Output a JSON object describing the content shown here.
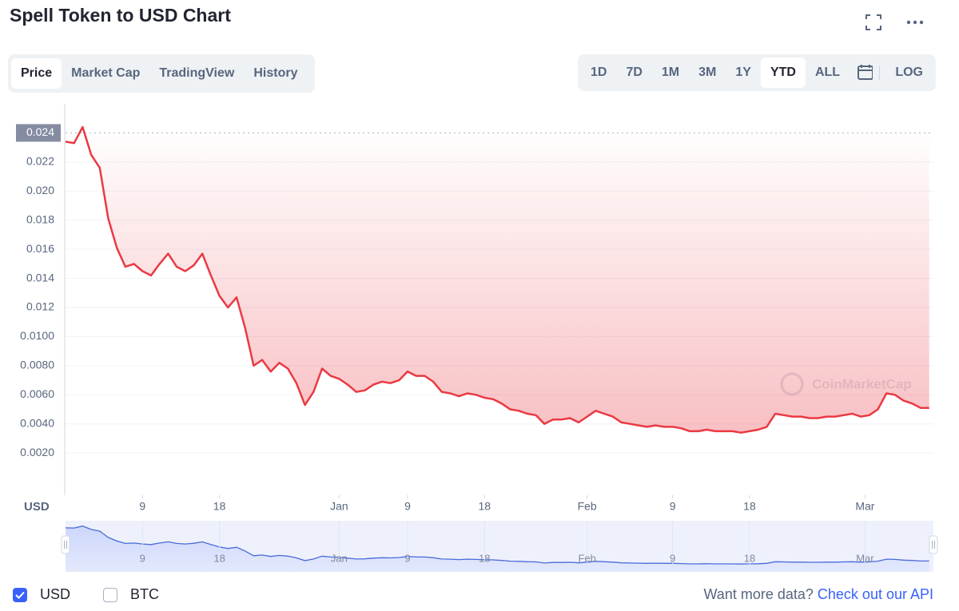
{
  "header": {
    "title": "Spell Token to USD Chart"
  },
  "tabs": [
    {
      "label": "Price",
      "active": true
    },
    {
      "label": "Market Cap",
      "active": false
    },
    {
      "label": "TradingView",
      "active": false
    },
    {
      "label": "History",
      "active": false
    }
  ],
  "ranges": [
    {
      "label": "1D",
      "active": false
    },
    {
      "label": "7D",
      "active": false
    },
    {
      "label": "1M",
      "active": false
    },
    {
      "label": "3M",
      "active": false
    },
    {
      "label": "1Y",
      "active": false
    },
    {
      "label": "YTD",
      "active": true
    },
    {
      "label": "ALL",
      "active": false
    }
  ],
  "scale_toggle": "LOG",
  "chart_data": {
    "type": "line",
    "y_label": "USD",
    "watermark": "CoinMarketCap",
    "x": [
      0,
      1,
      2,
      3,
      4,
      5,
      6,
      7,
      8,
      9,
      10,
      11,
      12,
      13,
      14,
      15,
      16,
      17,
      18,
      19,
      20,
      21,
      22,
      23,
      24,
      25,
      26,
      27,
      28,
      29,
      30,
      31,
      32,
      33,
      34,
      35,
      36,
      37,
      38,
      39,
      40,
      41,
      42,
      43,
      44,
      45,
      46,
      47,
      48,
      49,
      50,
      51,
      52,
      53,
      54,
      55,
      56,
      57,
      58,
      59,
      60,
      61,
      62,
      63,
      64,
      65,
      66,
      67,
      68,
      69,
      70,
      71,
      72,
      73,
      74,
      75,
      76,
      77,
      78,
      79,
      80,
      81,
      82,
      83,
      84,
      85,
      86,
      87,
      88,
      89,
      90,
      91,
      92,
      93,
      94,
      95,
      96,
      97,
      98,
      99,
      100,
      101
    ],
    "series": [
      {
        "color": "#ea3943",
        "values": [
          0.0234,
          0.0233,
          0.0244,
          0.0225,
          0.0216,
          0.0181,
          0.0161,
          0.0148,
          0.015,
          0.0145,
          0.0142,
          0.015,
          0.0157,
          0.0148,
          0.0145,
          0.0149,
          0.0157,
          0.0142,
          0.0128,
          0.012,
          0.0127,
          0.0106,
          0.008,
          0.0084,
          0.0076,
          0.0082,
          0.0078,
          0.0068,
          0.0053,
          0.0062,
          0.0078,
          0.0073,
          0.0071,
          0.0067,
          0.0062,
          0.0063,
          0.0067,
          0.0069,
          0.0068,
          0.007,
          0.0076,
          0.0073,
          0.0073,
          0.0069,
          0.0062,
          0.0061,
          0.0059,
          0.0061,
          0.006,
          0.0058,
          0.0057,
          0.0054,
          0.005,
          0.0049,
          0.0047,
          0.0046,
          0.004,
          0.0043,
          0.0043,
          0.0044,
          0.0041,
          0.0045,
          0.0049,
          0.0047,
          0.0045,
          0.0041,
          0.004,
          0.0039,
          0.0038,
          0.0039,
          0.0038,
          0.0038,
          0.0037,
          0.0035,
          0.0035,
          0.0036,
          0.0035,
          0.0035,
          0.0035,
          0.0034,
          0.0035,
          0.0036,
          0.0038,
          0.0047,
          0.0046,
          0.0045,
          0.0045,
          0.0044,
          0.0044,
          0.0045,
          0.0045,
          0.0046,
          0.0047,
          0.0045,
          0.0046,
          0.005,
          0.0061,
          0.006,
          0.0056,
          0.0054,
          0.0051,
          0.0051
        ]
      }
    ],
    "xlim": [
      0,
      101.5
    ],
    "ylim": [
      -0.0009,
      0.026
    ],
    "xticks": [
      {
        "value": 9,
        "label": "9"
      },
      {
        "value": 18,
        "label": "18"
      },
      {
        "value": 32,
        "label": "Jan"
      },
      {
        "value": 40,
        "label": "9"
      },
      {
        "value": 49,
        "label": "18"
      },
      {
        "value": 61,
        "label": "Feb"
      },
      {
        "value": 71,
        "label": "9"
      },
      {
        "value": 80,
        "label": "18"
      },
      {
        "value": 93.5,
        "label": "Mar"
      }
    ],
    "yticks": [
      0.024,
      0.022,
      {
        "value": 0.02,
        "label": "0.020"
      },
      0.018,
      0.016,
      0.014,
      0.012,
      {
        "value": 0.01,
        "label": "0.0100"
      },
      {
        "value": 0.008,
        "label": "0.0080"
      },
      {
        "value": 0.006,
        "label": "0.0060"
      },
      {
        "value": 0.004,
        "label": "0.0040"
      },
      {
        "value": 0.002,
        "label": "0.0020"
      }
    ],
    "grid": true
  },
  "currencies": [
    {
      "label": "USD",
      "checked": true
    },
    {
      "label": "BTC",
      "checked": false
    }
  ],
  "footer": {
    "text": "Want more data?",
    "link": "Check out our API"
  }
}
